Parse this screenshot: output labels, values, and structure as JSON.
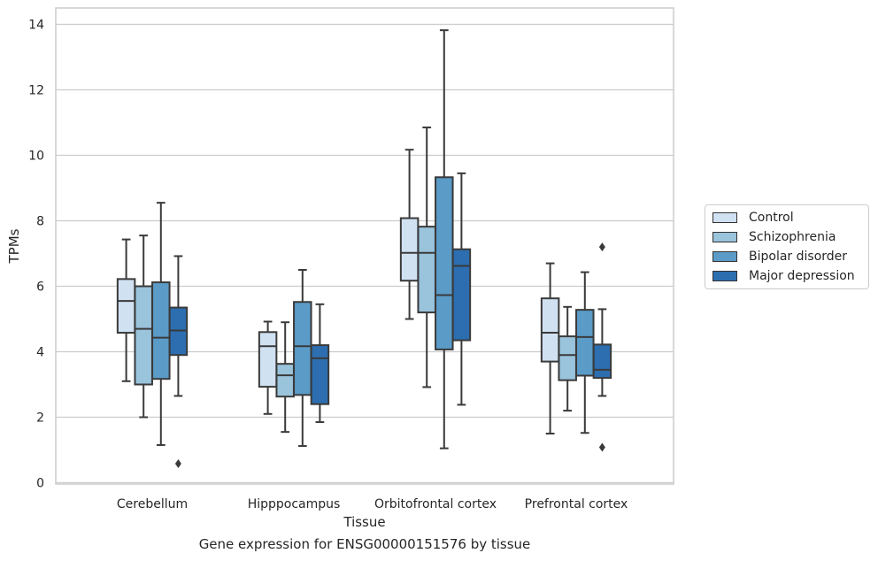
{
  "chart_data": {
    "type": "box",
    "title": "",
    "xlabel": "Tissue",
    "ylabel": "TPMs",
    "caption": "Gene expression for ENSG00000151576 by tissue",
    "ylim": [
      0,
      14.5
    ],
    "yticks": [
      "0",
      "2",
      "4",
      "6",
      "8",
      "10",
      "12",
      "14"
    ],
    "grid": "horizontal",
    "legend_position": "right",
    "categories": [
      "Cerebellum",
      "Hipppocampus",
      "Orbitofrontal cortex",
      "Prefrontal cortex"
    ],
    "series": [
      {
        "name": "Control",
        "color": "#d0e1f2",
        "boxes": [
          {
            "whislo": 3.1,
            "q1": 4.58,
            "med": 5.55,
            "q3": 6.22,
            "whishi": 7.43,
            "fliers": []
          },
          {
            "whislo": 2.1,
            "q1": 2.93,
            "med": 4.17,
            "q3": 4.6,
            "whishi": 4.92,
            "fliers": []
          },
          {
            "whislo": 5.0,
            "q1": 6.17,
            "med": 7.02,
            "q3": 8.08,
            "whishi": 10.17,
            "fliers": []
          },
          {
            "whislo": 1.5,
            "q1": 3.7,
            "med": 4.58,
            "q3": 5.63,
            "whishi": 6.7,
            "fliers": []
          }
        ]
      },
      {
        "name": "Schizophrenia",
        "color": "#9ac3dc",
        "boxes": [
          {
            "whislo": 2.0,
            "q1": 3.0,
            "med": 4.7,
            "q3": 6.0,
            "whishi": 7.55,
            "fliers": []
          },
          {
            "whislo": 1.55,
            "q1": 2.63,
            "med": 3.28,
            "q3": 3.63,
            "whishi": 4.9,
            "fliers": []
          },
          {
            "whislo": 2.92,
            "q1": 5.2,
            "med": 7.02,
            "q3": 7.82,
            "whishi": 10.85,
            "fliers": []
          },
          {
            "whislo": 2.2,
            "q1": 3.13,
            "med": 3.9,
            "q3": 4.47,
            "whishi": 5.37,
            "fliers": []
          }
        ]
      },
      {
        "name": "Bipolar disorder",
        "color": "#5a9bc8",
        "boxes": [
          {
            "whislo": 1.15,
            "q1": 3.17,
            "med": 4.43,
            "q3": 6.12,
            "whishi": 8.55,
            "fliers": []
          },
          {
            "whislo": 1.12,
            "q1": 2.68,
            "med": 4.17,
            "q3": 5.52,
            "whishi": 6.5,
            "fliers": []
          },
          {
            "whislo": 1.05,
            "q1": 4.07,
            "med": 5.73,
            "q3": 9.33,
            "whishi": 13.82,
            "fliers": []
          },
          {
            "whislo": 1.52,
            "q1": 3.27,
            "med": 4.45,
            "q3": 5.28,
            "whishi": 6.43,
            "fliers": []
          }
        ]
      },
      {
        "name": "Major depression",
        "color": "#2c6eb0",
        "boxes": [
          {
            "whislo": 2.65,
            "q1": 3.9,
            "med": 4.65,
            "q3": 5.35,
            "whishi": 6.92,
            "fliers": [
              0.58
            ]
          },
          {
            "whislo": 1.85,
            "q1": 2.4,
            "med": 3.8,
            "q3": 4.2,
            "whishi": 5.45,
            "fliers": []
          },
          {
            "whislo": 2.38,
            "q1": 4.35,
            "med": 6.62,
            "q3": 7.13,
            "whishi": 9.45,
            "fliers": []
          },
          {
            "whislo": 2.65,
            "q1": 3.2,
            "med": 3.45,
            "q3": 4.22,
            "whishi": 5.3,
            "fliers": [
              7.2,
              1.08
            ]
          }
        ]
      }
    ]
  }
}
